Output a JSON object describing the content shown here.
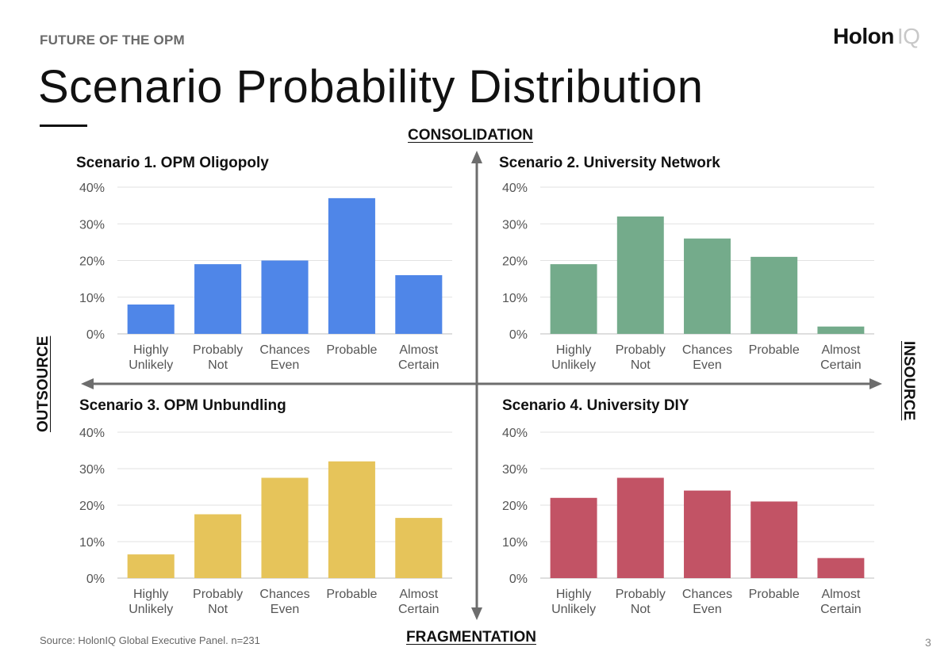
{
  "header": {
    "kicker": "FUTURE OF THE OPM",
    "title": "Scenario Probability Distribution",
    "logo_main": "Holon",
    "logo_accent": "IQ"
  },
  "axes": {
    "top": "CONSOLIDATION",
    "bottom": "FRAGMENTATION",
    "left": "OUTSOURCE",
    "right": "INSOURCE"
  },
  "footer": {
    "source": "Source: HolonIQ Global Executive Panel. n=231",
    "page": "3"
  },
  "chart_data": [
    {
      "type": "bar",
      "title": "Scenario 1. OPM Oligopoly",
      "categories": [
        [
          "Highly",
          "Unlikely"
        ],
        [
          "Probably",
          "Not"
        ],
        [
          "Chances",
          "Even"
        ],
        [
          "Probable"
        ],
        [
          "Almost",
          "Certain"
        ]
      ],
      "values": [
        8,
        19,
        20,
        37,
        16
      ],
      "ylim": [
        0,
        40
      ],
      "yticks": [
        "0%",
        "10%",
        "20%",
        "30%",
        "40%"
      ],
      "color": "#4f86e8",
      "grid": true
    },
    {
      "type": "bar",
      "title": "Scenario 2. University Network",
      "categories": [
        [
          "Highly",
          "Unlikely"
        ],
        [
          "Probably",
          "Not"
        ],
        [
          "Chances",
          "Even"
        ],
        [
          "Probable"
        ],
        [
          "Almost",
          "Certain"
        ]
      ],
      "values": [
        19,
        32,
        26,
        21,
        2
      ],
      "ylim": [
        0,
        40
      ],
      "yticks": [
        "0%",
        "10%",
        "20%",
        "30%",
        "40%"
      ],
      "color": "#74ab8b",
      "grid": true
    },
    {
      "type": "bar",
      "title": "Scenario 3. OPM Unbundling",
      "categories": [
        [
          "Highly",
          "Unlikely"
        ],
        [
          "Probably",
          "Not"
        ],
        [
          "Chances",
          "Even"
        ],
        [
          "Probable"
        ],
        [
          "Almost",
          "Certain"
        ]
      ],
      "values": [
        6.5,
        17.5,
        27.5,
        32,
        16.5
      ],
      "ylim": [
        0,
        40
      ],
      "yticks": [
        "0%",
        "10%",
        "20%",
        "30%",
        "40%"
      ],
      "color": "#e6c45a",
      "grid": true
    },
    {
      "type": "bar",
      "title": "Scenario 4. University DIY",
      "categories": [
        [
          "Highly",
          "Unlikely"
        ],
        [
          "Probably",
          "Not"
        ],
        [
          "Chances",
          "Even"
        ],
        [
          "Probable"
        ],
        [
          "Almost",
          "Certain"
        ]
      ],
      "values": [
        22,
        27.5,
        24,
        21,
        5.5
      ],
      "ylim": [
        0,
        40
      ],
      "yticks": [
        "0%",
        "10%",
        "20%",
        "30%",
        "40%"
      ],
      "color": "#c25365",
      "grid": true
    }
  ]
}
